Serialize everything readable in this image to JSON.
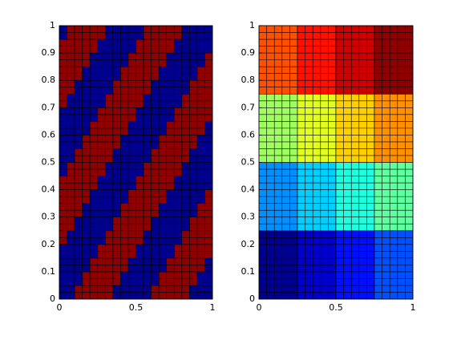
{
  "chart_data": [
    {
      "type": "heatmap",
      "xlim": [
        0,
        1
      ],
      "ylim": [
        0,
        1
      ],
      "xticks": [
        0,
        0.5,
        1
      ],
      "yticks": [
        0,
        0.1,
        0.2,
        0.3,
        0.4,
        0.5,
        0.6,
        0.7,
        0.8,
        0.9,
        1
      ],
      "clim": [
        0,
        1
      ],
      "colors": [
        "#00008f",
        "#8f0000"
      ],
      "z": [
        [
          0,
          0,
          1,
          1,
          1,
          1,
          1,
          0,
          0,
          0,
          0,
          0,
          1,
          1,
          1,
          1,
          1,
          0,
          0,
          0
        ],
        [
          0,
          0,
          1,
          1,
          1,
          1,
          1,
          0,
          0,
          0,
          0,
          0,
          1,
          1,
          1,
          1,
          1,
          0,
          0,
          0
        ],
        [
          0,
          0,
          0,
          1,
          1,
          1,
          1,
          1,
          0,
          0,
          0,
          0,
          0,
          1,
          1,
          1,
          1,
          1,
          0,
          0
        ],
        [
          0,
          0,
          0,
          1,
          1,
          1,
          1,
          1,
          0,
          0,
          0,
          0,
          0,
          1,
          1,
          1,
          1,
          1,
          0,
          0
        ],
        [
          0,
          0,
          0,
          0,
          1,
          1,
          1,
          1,
          1,
          0,
          0,
          0,
          0,
          0,
          1,
          1,
          1,
          1,
          1,
          0
        ],
        [
          0,
          0,
          0,
          0,
          1,
          1,
          1,
          1,
          1,
          0,
          0,
          0,
          0,
          0,
          1,
          1,
          1,
          1,
          1,
          0
        ],
        [
          0,
          0,
          0,
          0,
          0,
          1,
          1,
          1,
          1,
          1,
          0,
          0,
          0,
          0,
          0,
          1,
          1,
          1,
          1,
          1
        ],
        [
          0,
          0,
          0,
          0,
          0,
          1,
          1,
          1,
          1,
          1,
          0,
          0,
          0,
          0,
          0,
          1,
          1,
          1,
          1,
          1
        ],
        [
          1,
          0,
          0,
          0,
          0,
          0,
          1,
          1,
          1,
          1,
          1,
          0,
          0,
          0,
          0,
          0,
          1,
          1,
          1,
          1
        ],
        [
          1,
          0,
          0,
          0,
          0,
          0,
          1,
          1,
          1,
          1,
          1,
          0,
          0,
          0,
          0,
          0,
          1,
          1,
          1,
          1
        ],
        [
          1,
          1,
          0,
          0,
          0,
          0,
          0,
          1,
          1,
          1,
          1,
          1,
          0,
          0,
          0,
          0,
          0,
          1,
          1,
          1
        ],
        [
          1,
          1,
          0,
          0,
          0,
          0,
          0,
          1,
          1,
          1,
          1,
          1,
          0,
          0,
          0,
          0,
          0,
          1,
          1,
          1
        ],
        [
          1,
          1,
          1,
          0,
          0,
          0,
          0,
          0,
          1,
          1,
          1,
          1,
          1,
          0,
          0,
          0,
          0,
          0,
          1,
          1
        ],
        [
          1,
          1,
          1,
          0,
          0,
          0,
          0,
          0,
          1,
          1,
          1,
          1,
          1,
          0,
          0,
          0,
          0,
          0,
          1,
          1
        ],
        [
          1,
          1,
          1,
          1,
          0,
          0,
          0,
          0,
          0,
          1,
          1,
          1,
          1,
          1,
          0,
          0,
          0,
          0,
          0,
          1
        ],
        [
          1,
          1,
          1,
          1,
          0,
          0,
          0,
          0,
          0,
          1,
          1,
          1,
          1,
          1,
          0,
          0,
          0,
          0,
          0,
          1
        ],
        [
          1,
          1,
          1,
          1,
          1,
          0,
          0,
          0,
          0,
          0,
          1,
          1,
          1,
          1,
          1,
          0,
          0,
          0,
          0,
          0
        ],
        [
          1,
          1,
          1,
          1,
          1,
          0,
          0,
          0,
          0,
          0,
          1,
          1,
          1,
          1,
          1,
          0,
          0,
          0,
          0,
          0
        ],
        [
          0,
          1,
          1,
          1,
          1,
          1,
          0,
          0,
          0,
          0,
          0,
          1,
          1,
          1,
          1,
          1,
          0,
          0,
          0,
          0
        ],
        [
          0,
          1,
          1,
          1,
          1,
          1,
          0,
          0,
          0,
          0,
          0,
          1,
          1,
          1,
          1,
          1,
          0,
          0,
          0,
          0
        ],
        [
          0,
          0,
          1,
          1,
          1,
          1,
          1,
          0,
          0,
          0,
          0,
          0,
          1,
          1,
          1,
          1,
          1,
          0,
          0,
          0
        ],
        [
          0,
          0,
          1,
          1,
          1,
          1,
          1,
          0,
          0,
          0,
          0,
          0,
          1,
          1,
          1,
          1,
          1,
          0,
          0,
          0
        ],
        [
          0,
          0,
          0,
          1,
          1,
          1,
          1,
          1,
          0,
          0,
          0,
          0,
          0,
          1,
          1,
          1,
          1,
          1,
          0,
          0
        ],
        [
          0,
          0,
          0,
          1,
          1,
          1,
          1,
          1,
          0,
          0,
          0,
          0,
          0,
          1,
          1,
          1,
          1,
          1,
          0,
          0
        ],
        [
          0,
          0,
          0,
          0,
          1,
          1,
          1,
          1,
          1,
          0,
          0,
          0,
          0,
          0,
          1,
          1,
          1,
          1,
          1,
          0
        ],
        [
          0,
          0,
          0,
          0,
          1,
          1,
          1,
          1,
          1,
          0,
          0,
          0,
          0,
          0,
          1,
          1,
          1,
          1,
          1,
          0
        ],
        [
          0,
          0,
          0,
          0,
          0,
          1,
          1,
          1,
          1,
          1,
          0,
          0,
          0,
          0,
          0,
          1,
          1,
          1,
          1,
          1
        ],
        [
          0,
          0,
          0,
          0,
          0,
          1,
          1,
          1,
          1,
          1,
          0,
          0,
          0,
          0,
          0,
          1,
          1,
          1,
          1,
          1
        ],
        [
          1,
          0,
          0,
          0,
          0,
          0,
          1,
          1,
          1,
          1,
          1,
          0,
          0,
          0,
          0,
          0,
          1,
          1,
          1,
          1
        ],
        [
          1,
          0,
          0,
          0,
          0,
          0,
          1,
          1,
          1,
          1,
          1,
          0,
          0,
          0,
          0,
          0,
          1,
          1,
          1,
          1
        ],
        [
          1,
          1,
          0,
          0,
          0,
          0,
          0,
          1,
          1,
          1,
          1,
          1,
          0,
          0,
          0,
          0,
          0,
          1,
          1,
          1
        ],
        [
          1,
          1,
          0,
          0,
          0,
          0,
          0,
          1,
          1,
          1,
          1,
          1,
          0,
          0,
          0,
          0,
          0,
          1,
          1,
          1
        ],
        [
          1,
          1,
          1,
          0,
          0,
          0,
          0,
          0,
          1,
          1,
          1,
          1,
          1,
          0,
          0,
          0,
          0,
          0,
          1,
          1
        ],
        [
          1,
          1,
          1,
          0,
          0,
          0,
          0,
          0,
          1,
          1,
          1,
          1,
          1,
          0,
          0,
          0,
          0,
          0,
          1,
          1
        ],
        [
          1,
          1,
          1,
          1,
          0,
          0,
          0,
          0,
          0,
          1,
          1,
          1,
          1,
          1,
          0,
          0,
          0,
          0,
          0,
          1
        ],
        [
          1,
          1,
          1,
          1,
          0,
          0,
          0,
          0,
          0,
          1,
          1,
          1,
          1,
          1,
          0,
          0,
          0,
          0,
          0,
          1
        ],
        [
          1,
          1,
          1,
          1,
          1,
          0,
          0,
          0,
          0,
          0,
          1,
          1,
          1,
          1,
          1,
          0,
          0,
          0,
          0,
          0
        ],
        [
          1,
          1,
          1,
          1,
          1,
          0,
          0,
          0,
          0,
          0,
          1,
          1,
          1,
          1,
          1,
          0,
          0,
          0,
          0,
          0
        ],
        [
          0,
          1,
          1,
          1,
          1,
          1,
          0,
          0,
          0,
          0,
          0,
          1,
          1,
          1,
          1,
          1,
          0,
          0,
          0,
          0
        ],
        [
          0,
          1,
          1,
          1,
          1,
          1,
          0,
          0,
          0,
          0,
          0,
          1,
          1,
          1,
          1,
          1,
          0,
          0,
          0,
          0
        ]
      ]
    },
    {
      "type": "heatmap",
      "xlim": [
        0,
        1
      ],
      "ylim": [
        0,
        1
      ],
      "xticks": [
        0,
        0.5,
        1
      ],
      "yticks": [
        0,
        0.1,
        0.2,
        0.3,
        0.4,
        0.5,
        0.6,
        0.7,
        0.8,
        0.9,
        1
      ],
      "clim": [
        1,
        16
      ],
      "colors": [
        "#000090",
        "#0000cc",
        "#0010ff",
        "#0050ff",
        "#0090ff",
        "#00d0ff",
        "#20ffdf",
        "#60ff9f",
        "#a0ff60",
        "#e0ff20",
        "#ffd000",
        "#ff9000",
        "#ff5000",
        "#ff1000",
        "#cf0000",
        "#8f0000"
      ],
      "z": [
        [
          1,
          2,
          3,
          4
        ],
        [
          5,
          6,
          7,
          8
        ],
        [
          9,
          10,
          11,
          12
        ],
        [
          13,
          14,
          15,
          16
        ]
      ]
    }
  ]
}
